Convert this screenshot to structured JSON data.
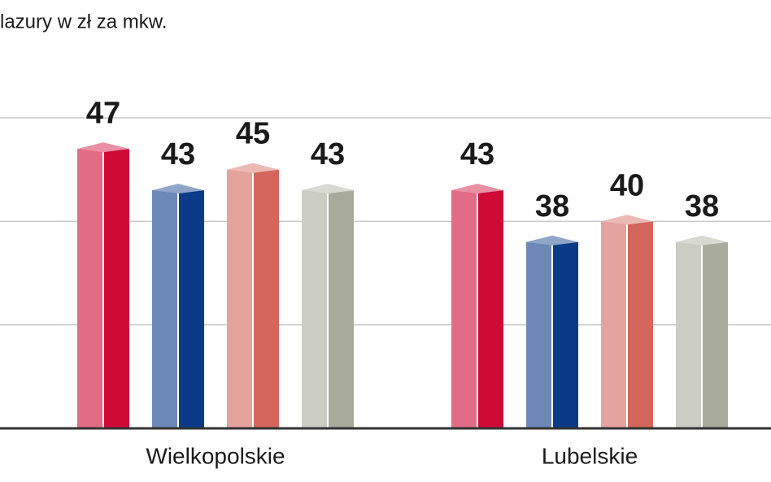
{
  "chart_data": {
    "type": "bar",
    "title": "lazury w zł za mkw.",
    "categories": [
      "Wielkopolskie",
      "Lubelskie"
    ],
    "series": [
      {
        "color": "#cf0a35",
        "values": [
          47,
          43
        ]
      },
      {
        "color": "#0b3a86",
        "values": [
          43,
          38
        ]
      },
      {
        "color": "#d4665c",
        "values": [
          45,
          40
        ]
      },
      {
        "color": "#a9ab9a",
        "values": [
          43,
          38
        ]
      }
    ],
    "ylim": [
      20,
      61
    ],
    "yticks": [
      20,
      30,
      40,
      50
    ],
    "grid": true
  }
}
